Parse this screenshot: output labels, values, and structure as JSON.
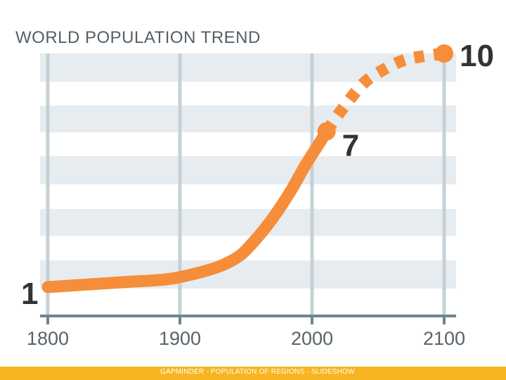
{
  "title": "WORLD POPULATION TREND",
  "footer": "GAPMINDER - POPULATION OF REGIONS - SLIDESHOW",
  "colors": {
    "line": "#f68d3a",
    "band": "#e6ecef",
    "grid": "#c6d1d6",
    "axis": "#6f858f",
    "footer": "#f6b521"
  },
  "chart_data": {
    "type": "line",
    "title": "WORLD POPULATION TREND",
    "xlabel": "",
    "ylabel": "",
    "xlim": [
      1800,
      2100
    ],
    "ylim": [
      1,
      10
    ],
    "x_ticks": [
      "1800",
      "1900",
      "2000",
      "2100"
    ],
    "series": [
      {
        "name": "historical",
        "style": "solid",
        "x": [
          1800,
          1830,
          1860,
          1890,
          1910,
          1930,
          1945,
          1955,
          1965,
          1975,
          1985,
          1995,
          2005,
          2011
        ],
        "y": [
          1.0,
          1.1,
          1.2,
          1.3,
          1.5,
          1.8,
          2.2,
          2.7,
          3.3,
          4.0,
          4.8,
          5.7,
          6.5,
          7.0
        ]
      },
      {
        "name": "projection",
        "style": "dashed",
        "x": [
          2011,
          2025,
          2040,
          2055,
          2070,
          2085,
          2100
        ],
        "y": [
          7.0,
          8.0,
          8.9,
          9.4,
          9.75,
          9.9,
          10.0
        ]
      }
    ],
    "labeled_points": [
      {
        "x": 1800,
        "y": 1,
        "label": "1"
      },
      {
        "x": 2011,
        "y": 7,
        "label": "7"
      },
      {
        "x": 2100,
        "y": 10,
        "label": "10"
      }
    ]
  }
}
